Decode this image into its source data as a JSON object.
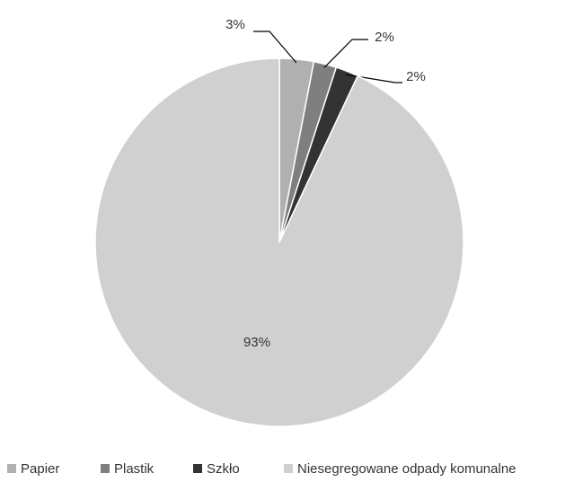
{
  "chart_data": {
    "type": "pie",
    "categories": [
      "Papier",
      "Plastik",
      "Szkło",
      "Niesegregowane odpady komunalne"
    ],
    "values": [
      3,
      2,
      2,
      93
    ],
    "value_labels": [
      "3%",
      "2%",
      "2%",
      "93%"
    ],
    "colors": [
      "#b0b0b0",
      "#7f7f7f",
      "#333333",
      "#d0d0d0"
    ],
    "legend": "bottom"
  }
}
